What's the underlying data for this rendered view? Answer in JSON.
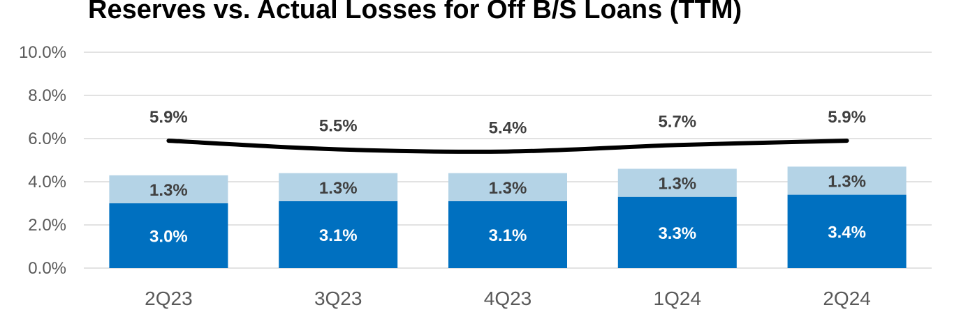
{
  "chart_data": {
    "type": "bar",
    "title": "Reserves vs. Actual Losses for Off B/S Loans (TTM)",
    "categories": [
      "2Q23",
      "3Q23",
      "4Q23",
      "1Q24",
      "2Q24"
    ],
    "series": [
      {
        "kind": "bar-stack-bottom",
        "values": [
          3.0,
          3.1,
          3.1,
          3.3,
          3.4
        ],
        "labels": [
          "3.0%",
          "3.1%",
          "3.1%",
          "3.3%",
          "3.4%"
        ],
        "color": "#0070c0"
      },
      {
        "kind": "bar-stack-top",
        "values": [
          1.3,
          1.3,
          1.3,
          1.3,
          1.3
        ],
        "labels": [
          "1.3%",
          "1.3%",
          "1.3%",
          "1.3%",
          "1.3%"
        ],
        "color": "#b4d3e6"
      },
      {
        "kind": "line",
        "values": [
          5.9,
          5.5,
          5.4,
          5.7,
          5.9
        ],
        "labels": [
          "5.9%",
          "5.5%",
          "5.4%",
          "5.7%",
          "5.9%"
        ],
        "color": "#000000"
      }
    ],
    "ylim": [
      0,
      10
    ],
    "yticks": [
      "0.0%",
      "2.0%",
      "4.0%",
      "6.0%",
      "8.0%",
      "10.0%"
    ],
    "grid": true,
    "legend": "none"
  }
}
